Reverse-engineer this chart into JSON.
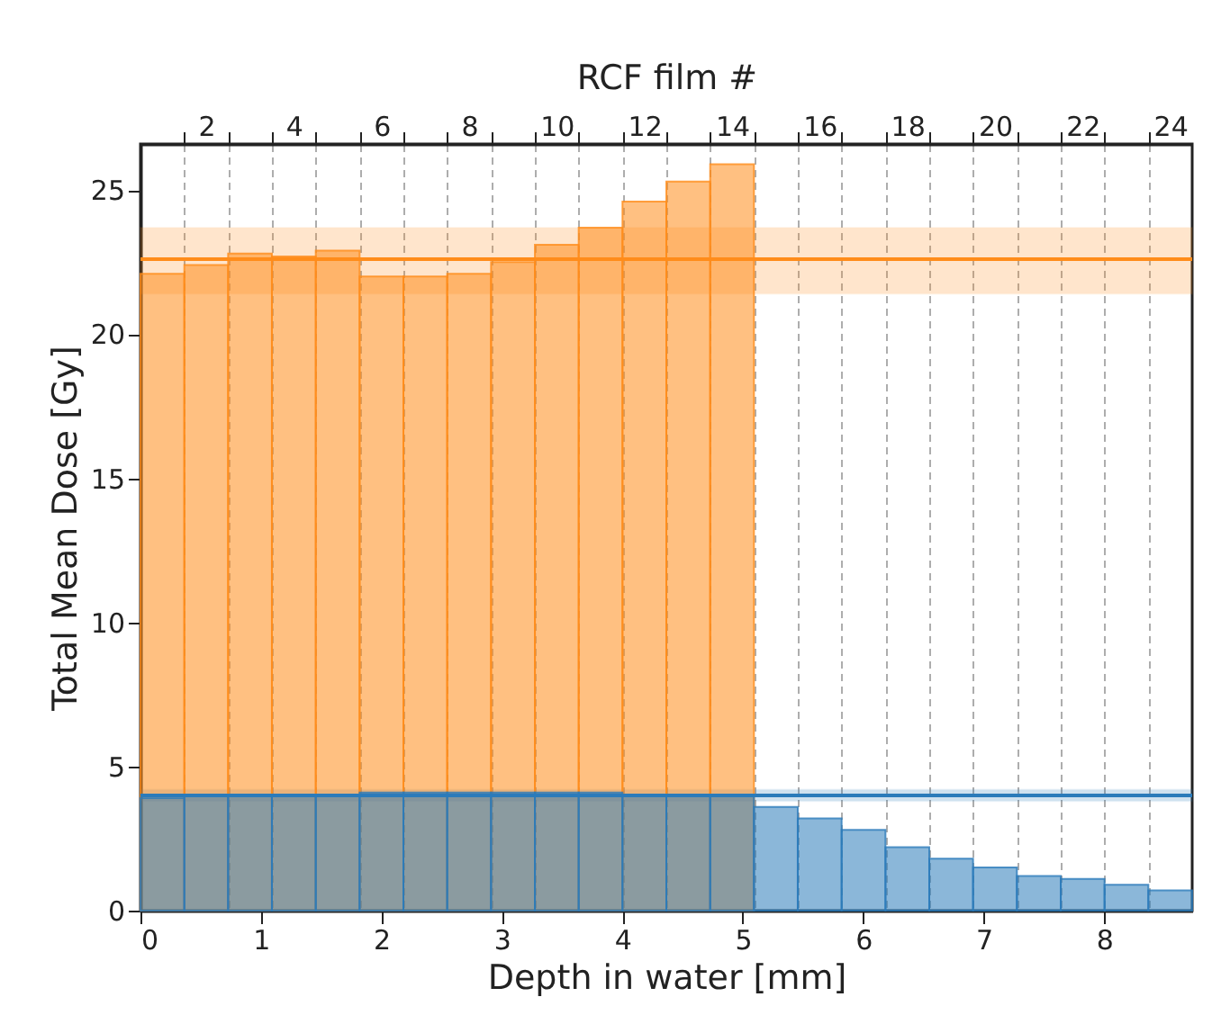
{
  "chart_data": {
    "type": "bar",
    "xlabel": "Depth in water [mm]",
    "ylabel": "Total Mean Dose [Gy]",
    "x2label": "RCF film #",
    "x": [
      0.182,
      0.546,
      0.909,
      1.273,
      1.637,
      2.001,
      2.364,
      2.728,
      3.092,
      3.456,
      3.819,
      4.183,
      4.547,
      4.911,
      5.274,
      5.638,
      6.002,
      6.366,
      6.729,
      7.093,
      7.457,
      7.821,
      8.184,
      8.548
    ],
    "series": [
      {
        "color": "#ff8c1a",
        "values": [
          22.1,
          22.4,
          22.8,
          22.7,
          22.9,
          22.0,
          22.0,
          22.1,
          22.5,
          23.1,
          23.7,
          24.6,
          25.3,
          25.9,
          null,
          null,
          null,
          null,
          null,
          null,
          null,
          null,
          null,
          null
        ]
      },
      {
        "color": "#2b7bba",
        "values": [
          3.9,
          4.0,
          4.0,
          4.0,
          4.0,
          4.1,
          4.1,
          4.1,
          4.1,
          4.1,
          4.1,
          4.0,
          4.0,
          4.0,
          3.6,
          3.2,
          2.8,
          2.2,
          1.8,
          1.5,
          1.2,
          1.1,
          0.9,
          0.7
        ]
      }
    ],
    "xlim": [
      0,
      8.73
    ],
    "xticks": [
      0,
      1,
      2,
      3,
      4,
      5,
      6,
      7,
      8
    ],
    "ylim": [
      0,
      26.6
    ],
    "yticks": [
      0,
      5,
      10,
      15,
      20,
      25
    ],
    "x2lim": [
      0.5,
      24.5
    ],
    "x2ticks": [
      {
        "value": 1.5,
        "label": null
      },
      2,
      {
        "value": 2.5,
        "label": null
      },
      {
        "value": 3.5,
        "label": null
      },
      4,
      {
        "value": 4.5,
        "label": null
      },
      {
        "value": 5.5,
        "label": null
      },
      6,
      {
        "value": 6.5,
        "label": null
      },
      {
        "value": 7.5,
        "label": null
      },
      8,
      {
        "value": 8.5,
        "label": null
      },
      {
        "value": 9.5,
        "label": null
      },
      10,
      {
        "value": 10.5,
        "label": null
      },
      {
        "value": 11.5,
        "label": null
      },
      12,
      {
        "value": 12.5,
        "label": null
      },
      {
        "value": 13.5,
        "label": null
      },
      14,
      {
        "value": 14.5,
        "label": null
      },
      {
        "value": 15.5,
        "label": null
      },
      16,
      {
        "value": 16.5,
        "label": null
      },
      {
        "value": 17.5,
        "label": null
      },
      18,
      {
        "value": 18.5,
        "label": null
      },
      {
        "value": 19.5,
        "label": null
      },
      20,
      {
        "value": 20.5,
        "label": null
      },
      {
        "value": 21.5,
        "label": null
      },
      22,
      {
        "value": 22.5,
        "label": null
      },
      {
        "value": 23.5,
        "label": null
      },
      24
    ],
    "grid": "x2",
    "ref_lines": [
      {
        "axis": "y",
        "value": 22.6,
        "color": "#ff8c1a"
      },
      {
        "axis": "y",
        "value": 4.0,
        "color": "#2b7bba"
      }
    ],
    "bands": [
      {
        "axis": "y",
        "from": 21.4,
        "to": 23.7,
        "color": "#ff8c1a"
      },
      {
        "axis": "y",
        "from": 3.8,
        "to": 4.2,
        "color": "#2b7bba"
      }
    ]
  }
}
